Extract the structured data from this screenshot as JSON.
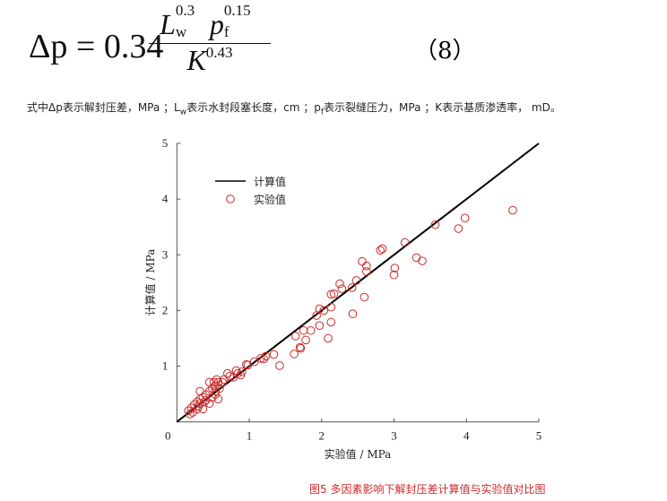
{
  "formula": {
    "lhs": "Δp = 0.34",
    "num_L": "L",
    "num_L_sub": "w",
    "num_L_exp": "0.3",
    "num_p": "p",
    "num_p_sub": "f",
    "num_p_exp": "0.15",
    "den_K": "K",
    "den_K_exp": "0.43",
    "equation_number": "（8）"
  },
  "description": {
    "part1": "式中Δp表示解封压差，MPa ；L",
    "sub1": "w",
    "part2": "表示水封段塞长度，cm ；p",
    "sub2": "f",
    "part3": "表示裂缝压力，MPa ；K表示基质渗透率， mD。"
  },
  "chart_data": {
    "type": "scatter",
    "xlabel": "实验值 / MPa",
    "ylabel": "计算值 / MPa",
    "xlim": [
      0,
      5
    ],
    "ylim": [
      0,
      5
    ],
    "xticks": [
      "0",
      "1",
      "2",
      "3",
      "4",
      "5"
    ],
    "yticks": [
      "1",
      "2",
      "3",
      "4",
      "5"
    ],
    "grid": false,
    "legend_position": "top-left",
    "colors": {
      "line": "#000000",
      "points": "#cc2a2a"
    },
    "series": [
      {
        "name": "计算值",
        "type": "line",
        "points": [
          [
            0,
            0
          ],
          [
            5,
            5
          ]
        ]
      },
      {
        "name": "实验值",
        "type": "scatter",
        "marker": "open-circle",
        "points": [
          [
            4.64,
            3.8
          ],
          [
            3.98,
            3.66
          ],
          [
            3.89,
            3.47
          ],
          [
            3.57,
            3.54
          ],
          [
            3.31,
            2.95
          ],
          [
            3.39,
            2.89
          ],
          [
            3.15,
            3.22
          ],
          [
            3.01,
            2.76
          ],
          [
            3.0,
            2.64
          ],
          [
            2.81,
            3.08
          ],
          [
            2.84,
            3.11
          ],
          [
            2.56,
            2.88
          ],
          [
            2.62,
            2.8
          ],
          [
            2.62,
            2.7
          ],
          [
            2.48,
            2.54
          ],
          [
            2.59,
            2.24
          ],
          [
            2.42,
            2.41
          ],
          [
            2.25,
            2.48
          ],
          [
            2.28,
            2.39
          ],
          [
            2.13,
            2.29
          ],
          [
            2.17,
            2.3
          ],
          [
            2.43,
            1.94
          ],
          [
            2.13,
            2.06
          ],
          [
            1.97,
            2.03
          ],
          [
            2.03,
            2.0
          ],
          [
            1.93,
            1.91
          ],
          [
            1.97,
            1.73
          ],
          [
            2.13,
            1.79
          ],
          [
            2.09,
            1.5
          ],
          [
            1.75,
            1.64
          ],
          [
            1.85,
            1.64
          ],
          [
            1.64,
            1.54
          ],
          [
            1.78,
            1.47
          ],
          [
            1.7,
            1.34
          ],
          [
            1.71,
            1.32
          ],
          [
            1.62,
            1.22
          ],
          [
            1.34,
            1.21
          ],
          [
            1.42,
            1.01
          ],
          [
            1.23,
            1.18
          ],
          [
            1.2,
            1.13
          ],
          [
            1.16,
            1.14
          ],
          [
            1.07,
            1.08
          ],
          [
            0.98,
            1.02
          ],
          [
            0.96,
            1.03
          ],
          [
            0.88,
            0.84
          ],
          [
            0.82,
            0.92
          ],
          [
            0.7,
            0.87
          ],
          [
            0.78,
            0.8
          ],
          [
            0.65,
            0.76
          ],
          [
            0.57,
            0.71
          ],
          [
            0.53,
            0.65
          ],
          [
            0.49,
            0.6
          ],
          [
            0.45,
            0.55
          ],
          [
            0.4,
            0.49
          ],
          [
            0.36,
            0.44
          ],
          [
            0.32,
            0.41
          ],
          [
            0.28,
            0.36
          ],
          [
            0.24,
            0.31
          ],
          [
            0.2,
            0.25
          ],
          [
            0.16,
            0.2
          ],
          [
            0.4,
            0.39
          ],
          [
            0.49,
            0.44
          ],
          [
            0.57,
            0.41
          ],
          [
            0.32,
            0.33
          ],
          [
            0.45,
            0.33
          ],
          [
            0.53,
            0.55
          ],
          [
            0.36,
            0.23
          ],
          [
            0.28,
            0.23
          ],
          [
            0.22,
            0.17
          ],
          [
            0.18,
            0.14
          ],
          [
            0.32,
            0.55
          ],
          [
            0.59,
            0.6
          ],
          [
            0.63,
            0.71
          ],
          [
            0.73,
            0.82
          ],
          [
            0.84,
            0.87
          ],
          [
            0.9,
            0.9
          ],
          [
            0.45,
            0.71
          ],
          [
            0.51,
            0.71
          ],
          [
            0.55,
            0.76
          ],
          [
            0.3,
            0.28
          ],
          [
            0.38,
            0.36
          ],
          [
            0.53,
            0.49
          ]
        ]
      }
    ]
  },
  "caption": "图5 多因素影响下解封压差计算值与实验值对比图"
}
